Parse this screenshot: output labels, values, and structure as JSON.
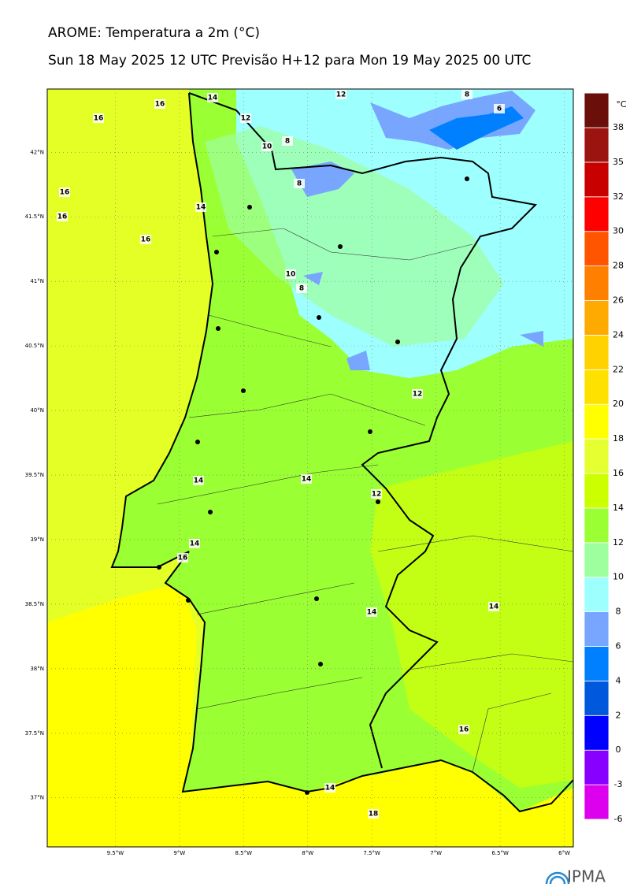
{
  "header": {
    "title": "AROME: Temperatura a 2m (°C)",
    "subtitle": "Sun 18 May 2025 12 UTC Previsão H+12 para Mon 19 May 2025 00 UTC"
  },
  "map": {
    "lat_ticks": [
      {
        "value": 42,
        "label": "42°N"
      },
      {
        "value": 41.5,
        "label": "41.5°N"
      },
      {
        "value": 41,
        "label": "41°N"
      },
      {
        "value": 40.5,
        "label": "40.5°N"
      },
      {
        "value": 40,
        "label": "40°N"
      },
      {
        "value": 39.5,
        "label": "39.5°N"
      },
      {
        "value": 39,
        "label": "39°N"
      },
      {
        "value": 38.5,
        "label": "38.5°N"
      },
      {
        "value": 38,
        "label": "38°N"
      },
      {
        "value": 37.5,
        "label": "37.5°N"
      },
      {
        "value": 37,
        "label": "37°N"
      }
    ],
    "lon_ticks": [
      {
        "value": -9.5,
        "label": "9.5°W"
      },
      {
        "value": -9,
        "label": "9°W"
      },
      {
        "value": -8.5,
        "label": "8.5°W"
      },
      {
        "value": -8,
        "label": "8°W"
      },
      {
        "value": -7.5,
        "label": "7.5°W"
      },
      {
        "value": -7,
        "label": "7°W"
      },
      {
        "value": -6.5,
        "label": "6.5°W"
      },
      {
        "value": -6,
        "label": "6°W"
      }
    ],
    "contour_labels": [
      16,
      16,
      14,
      12,
      12,
      8,
      6,
      10,
      8,
      8,
      16,
      16,
      14,
      16,
      10,
      8,
      12,
      14,
      14,
      12,
      14,
      16,
      14,
      14,
      16,
      14,
      18
    ]
  },
  "colorbar": {
    "unit": "°C",
    "levels": [
      -6,
      -3,
      0,
      2,
      4,
      6,
      8,
      10,
      12,
      14,
      16,
      18,
      20,
      22,
      24,
      26,
      28,
      30,
      32,
      35,
      38
    ],
    "colors": [
      "#dd00ee",
      "#8800ff",
      "#0000ff",
      "#0058dd",
      "#0080ff",
      "#78a6ff",
      "#9effff",
      "#9eff9e",
      "#9aff33",
      "#ccff00",
      "#e6ff30",
      "#ffff00",
      "#ffe100",
      "#ffd200",
      "#ffaa00",
      "#ff8000",
      "#ff5500",
      "#ff0000",
      "#c80000",
      "#9c1410",
      "#6b0f0a"
    ]
  },
  "logo": "IPMA"
}
